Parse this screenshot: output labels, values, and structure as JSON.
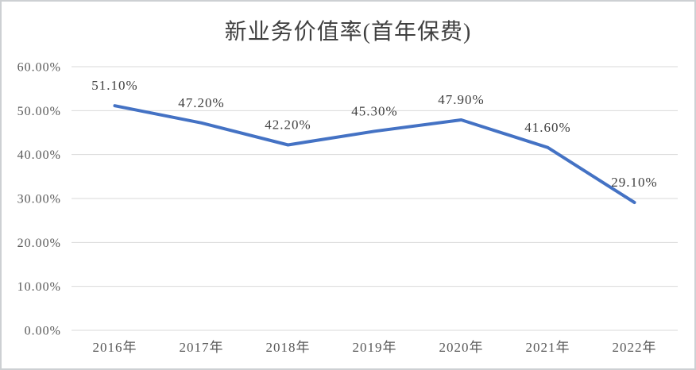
{
  "window": {
    "background": "#ffffff",
    "border_color": "#cdd0d3"
  },
  "chart_data": {
    "type": "line",
    "title": "新业务价值率(首年保费)",
    "categories": [
      "2016年",
      "2017年",
      "2018年",
      "2019年",
      "2020年",
      "2021年",
      "2022年"
    ],
    "series": [
      {
        "name": "新业务价值率(首年保费)",
        "values": [
          51.1,
          47.2,
          42.2,
          45.3,
          47.9,
          41.6,
          29.1
        ]
      }
    ],
    "data_labels": [
      "51.10%",
      "47.20%",
      "42.20%",
      "45.30%",
      "47.90%",
      "41.60%",
      "29.10%"
    ],
    "xlabel": "",
    "ylabel": "",
    "ylim": [
      0,
      60
    ],
    "y_tick_values": [
      0,
      10,
      20,
      30,
      40,
      50,
      60
    ],
    "y_tick_labels": [
      "0.00%",
      "10.00%",
      "20.00%",
      "30.00%",
      "40.00%",
      "50.00%",
      "60.00%"
    ],
    "grid": true,
    "legend_position": "none",
    "line_color": "#4472C4",
    "data_label_color": "#404040",
    "axis_label_color": "#595959",
    "gridline_color": "#d9d9d9",
    "title_color": "#404040"
  }
}
